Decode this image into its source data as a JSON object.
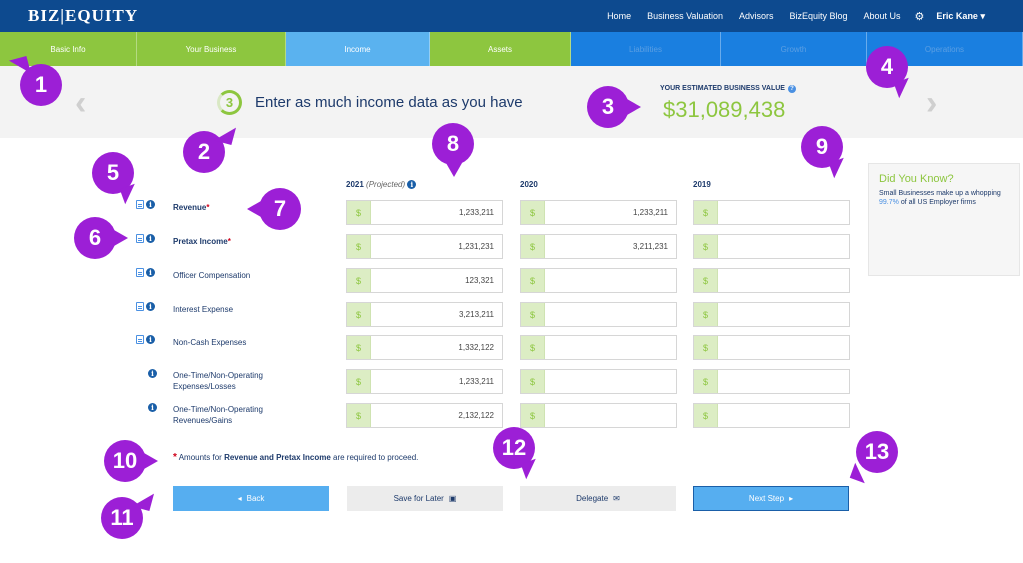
{
  "brand": {
    "logo": "BIZ|EQUITY"
  },
  "nav": {
    "items": [
      "Home",
      "Business Valuation",
      "Advisors",
      "BizEquity Blog",
      "About Us"
    ],
    "user": "Eric Kane"
  },
  "steps": [
    "Basic Info",
    "Your Business",
    "Income",
    "Assets",
    "Liabilities",
    "Growth",
    "Operations"
  ],
  "header": {
    "step_number": "3",
    "title": "Enter as much income data as you have",
    "ebv_label": "YOUR ESTIMATED BUSINESS VALUE",
    "ebv_value": "$31,089,438"
  },
  "table": {
    "columns": [
      {
        "year": "2021",
        "note": "(Projected)"
      },
      {
        "year": "2020",
        "note": ""
      },
      {
        "year": "2019",
        "note": ""
      }
    ],
    "currency": "$",
    "rows": [
      {
        "label": "Revenue",
        "required": "*",
        "values": [
          "1,233,211",
          "1,233,211",
          ""
        ]
      },
      {
        "label": "Pretax Income",
        "required": "*",
        "values": [
          "1,231,231",
          "3,211,231",
          ""
        ]
      },
      {
        "label": "Officer Compensation",
        "values": [
          "123,321",
          "",
          ""
        ]
      },
      {
        "label": "Interest Expense",
        "values": [
          "3,213,211",
          "",
          ""
        ]
      },
      {
        "label": "Non-Cash Expenses",
        "values": [
          "1,332,122",
          "",
          ""
        ]
      },
      {
        "label": "One-Time/Non-Operating Expenses/Losses",
        "values": [
          "1,233,211",
          "",
          ""
        ]
      },
      {
        "label": "One-Time/Non-Operating Revenues/Gains",
        "values": [
          "2,132,122",
          "",
          ""
        ]
      }
    ]
  },
  "did_you_know": {
    "title": "Did You Know?",
    "text_before": "Small Businesses make up a whopping",
    "pct": "99.7%",
    "text_after": "of all US Employer firms"
  },
  "note": {
    "star": "*",
    "before": "Amounts for",
    "bold": "Revenue and Pretax Income",
    "after": "are required to proceed."
  },
  "buttons": {
    "back": "Back",
    "save": "Save for Later",
    "delegate": "Delegate",
    "next": "Next Step"
  },
  "callouts": [
    "1",
    "2",
    "3",
    "4",
    "5",
    "6",
    "7",
    "8",
    "9",
    "10",
    "11",
    "12",
    "13"
  ],
  "colors": {
    "nav": "#0d4a8f",
    "done": "#8dc63f",
    "active": "#5ab2ef",
    "todo": "#1a7fe0",
    "callout": "#9c1fd6"
  }
}
